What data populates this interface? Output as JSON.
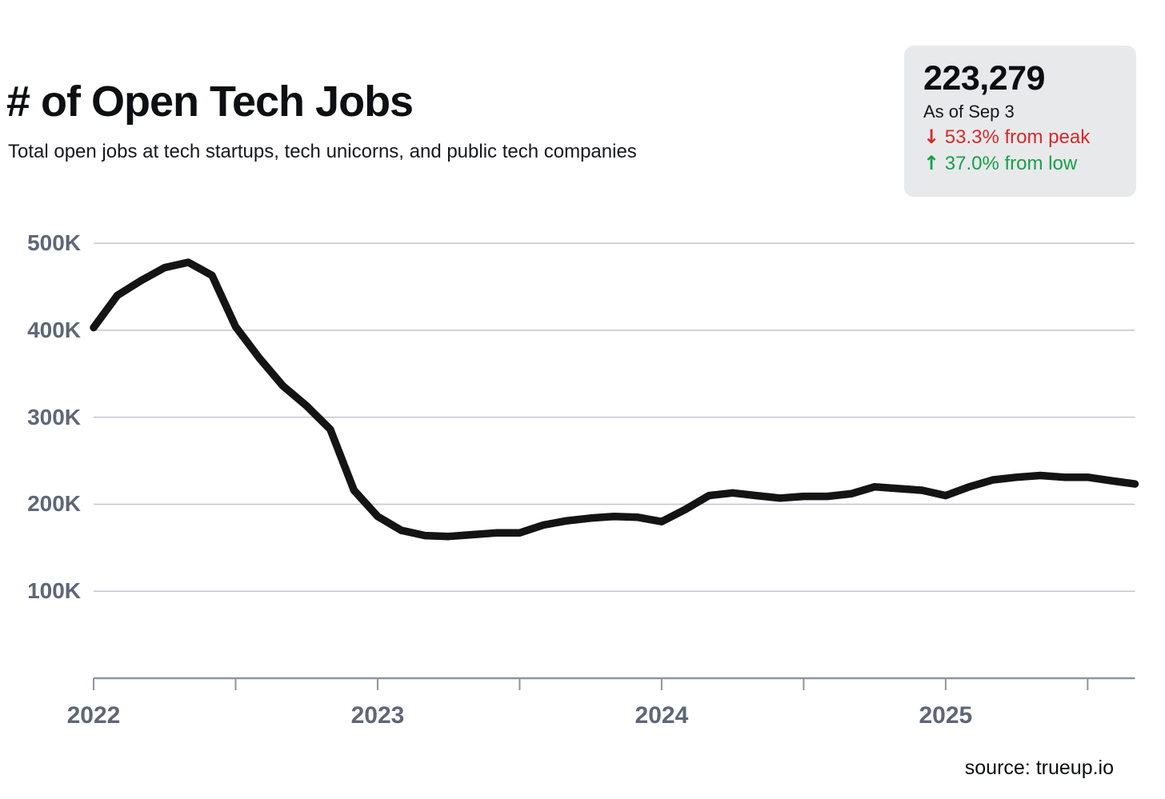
{
  "header": {
    "title": "# of Open Tech Jobs",
    "subtitle": "Total open jobs at tech startups, tech unicorns, and public tech companies"
  },
  "stat_box": {
    "value": "223,279",
    "as_of": "As of Sep 3",
    "down_arrow": "↓",
    "up_arrow": "↑",
    "from_peak": "53.3% from peak",
    "from_low": "37.0% from low",
    "background": "#e8e9eb",
    "peak_color": "#d32b2b",
    "low_color": "#18a04a"
  },
  "footer": {
    "source": "source: trueup.io"
  },
  "chart_data": {
    "type": "line",
    "title": "# of Open Tech Jobs",
    "subtitle": "Total open jobs at tech startups, tech unicorns, and public tech companies",
    "unit": "thousands of open jobs",
    "x": [
      "2022-01",
      "2022-02",
      "2022-03",
      "2022-04",
      "2022-05",
      "2022-06",
      "2022-07",
      "2022-08",
      "2022-09",
      "2022-10",
      "2022-11",
      "2022-12",
      "2023-01",
      "2023-02",
      "2023-03",
      "2023-04",
      "2023-05",
      "2023-06",
      "2023-07",
      "2023-08",
      "2023-09",
      "2023-10",
      "2023-11",
      "2023-12",
      "2024-01",
      "2024-02",
      "2024-03",
      "2024-04",
      "2024-05",
      "2024-06",
      "2024-07",
      "2024-08",
      "2024-09",
      "2024-10",
      "2024-11",
      "2024-12",
      "2025-01",
      "2025-02",
      "2025-03",
      "2025-04",
      "2025-05",
      "2025-06",
      "2025-07",
      "2025-08",
      "2025-09"
    ],
    "values": [
      403,
      440,
      457,
      472,
      478,
      463,
      404,
      368,
      336,
      313,
      286,
      216,
      186,
      170,
      164,
      163,
      165,
      167,
      167,
      176,
      181,
      184,
      186,
      185,
      180,
      194,
      210,
      213,
      210,
      207,
      209,
      209,
      212,
      220,
      218,
      216,
      210,
      220,
      228,
      231,
      233,
      231,
      231,
      227,
      223.3
    ],
    "latest_value": 223279,
    "peak_value": 478000,
    "low_value": 163000,
    "ylim": [
      0,
      520
    ],
    "yticks": [
      100,
      200,
      300,
      400,
      500
    ],
    "ytick_labels": [
      "100K",
      "200K",
      "300K",
      "400K",
      "500K"
    ],
    "xtick_month_indices": [
      0,
      6,
      12,
      18,
      24,
      30,
      36,
      42
    ],
    "xlabel_month_indices": [
      0,
      12,
      24,
      36
    ],
    "xtick_labels": [
      "2022",
      "2023",
      "2024",
      "2025"
    ],
    "grid": true,
    "legend": false,
    "line_color": "#141414",
    "grid_color": "#bfc6d1",
    "axis_color": "#8b95a5",
    "label_color": "#5d6777"
  }
}
